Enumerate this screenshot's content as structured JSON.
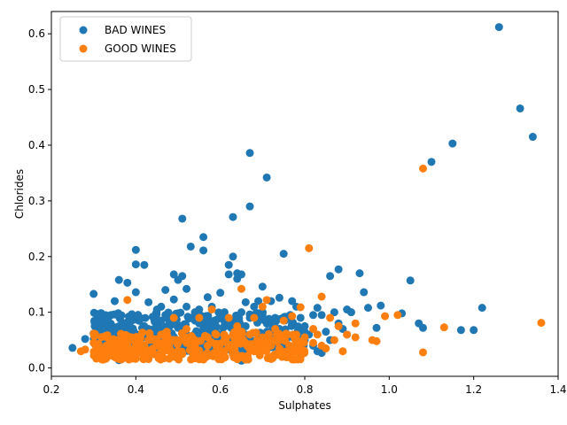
{
  "chart_data": {
    "type": "scatter",
    "xlabel": "Sulphates",
    "ylabel": "Chlorides",
    "xlim": [
      0.2,
      1.4
    ],
    "ylim": [
      -0.015,
      0.64
    ],
    "xticks": [
      "0.2",
      "0.4",
      "0.6",
      "0.8",
      "1.0",
      "1.2",
      "1.4"
    ],
    "yticks": [
      "0.0",
      "0.1",
      "0.2",
      "0.3",
      "0.4",
      "0.5",
      "0.6"
    ],
    "grid": false,
    "legend": "top-left",
    "series": [
      {
        "name": "BAD WINES",
        "color": "#1f77b4",
        "points": [
          [
            0.25,
            0.036
          ],
          [
            0.28,
            0.052
          ],
          [
            0.3,
            0.133
          ],
          [
            0.3,
            0.062
          ],
          [
            0.31,
            0.058
          ],
          [
            0.33,
            0.048
          ],
          [
            0.34,
            0.068
          ],
          [
            0.35,
            0.045
          ],
          [
            0.35,
            0.12
          ],
          [
            0.36,
            0.158
          ],
          [
            0.38,
            0.153
          ],
          [
            0.39,
            0.085
          ],
          [
            0.4,
            0.212
          ],
          [
            0.4,
            0.186
          ],
          [
            0.4,
            0.136
          ],
          [
            0.41,
            0.09
          ],
          [
            0.42,
            0.185
          ],
          [
            0.43,
            0.118
          ],
          [
            0.43,
            0.07
          ],
          [
            0.44,
            0.092
          ],
          [
            0.45,
            0.105
          ],
          [
            0.46,
            0.085
          ],
          [
            0.46,
            0.11
          ],
          [
            0.47,
            0.095
          ],
          [
            0.47,
            0.14
          ],
          [
            0.48,
            0.075
          ],
          [
            0.48,
            0.088
          ],
          [
            0.49,
            0.123
          ],
          [
            0.49,
            0.168
          ],
          [
            0.5,
            0.158
          ],
          [
            0.5,
            0.098
          ],
          [
            0.51,
            0.268
          ],
          [
            0.51,
            0.165
          ],
          [
            0.52,
            0.142
          ],
          [
            0.52,
            0.11
          ],
          [
            0.53,
            0.218
          ],
          [
            0.53,
            0.09
          ],
          [
            0.54,
            0.1
          ],
          [
            0.55,
            0.08
          ],
          [
            0.56,
            0.235
          ],
          [
            0.56,
            0.211
          ],
          [
            0.57,
            0.127
          ],
          [
            0.57,
            0.09
          ],
          [
            0.58,
            0.11
          ],
          [
            0.59,
            0.075
          ],
          [
            0.6,
            0.135
          ],
          [
            0.6,
            0.095
          ],
          [
            0.61,
            0.085
          ],
          [
            0.62,
            0.185
          ],
          [
            0.62,
            0.168
          ],
          [
            0.63,
            0.271
          ],
          [
            0.63,
            0.2
          ],
          [
            0.64,
            0.16
          ],
          [
            0.64,
            0.17
          ],
          [
            0.65,
            0.168
          ],
          [
            0.65,
            0.1
          ],
          [
            0.66,
            0.118
          ],
          [
            0.67,
            0.386
          ],
          [
            0.67,
            0.29
          ],
          [
            0.68,
            0.11
          ],
          [
            0.69,
            0.12
          ],
          [
            0.7,
            0.146
          ],
          [
            0.71,
            0.342
          ],
          [
            0.72,
            0.12
          ],
          [
            0.73,
            0.09
          ],
          [
            0.74,
            0.126
          ],
          [
            0.75,
            0.205
          ],
          [
            0.76,
            0.09
          ],
          [
            0.77,
            0.12
          ],
          [
            0.78,
            0.11
          ],
          [
            0.79,
            0.09
          ],
          [
            0.8,
            0.075
          ],
          [
            0.81,
            0.06
          ],
          [
            0.82,
            0.095
          ],
          [
            0.83,
            0.108
          ],
          [
            0.84,
            0.095
          ],
          [
            0.84,
            0.027
          ],
          [
            0.85,
            0.065
          ],
          [
            0.86,
            0.165
          ],
          [
            0.87,
            0.1
          ],
          [
            0.88,
            0.177
          ],
          [
            0.89,
            0.07
          ],
          [
            0.9,
            0.105
          ],
          [
            0.91,
            0.1
          ],
          [
            0.93,
            0.17
          ],
          [
            0.94,
            0.136
          ],
          [
            0.95,
            0.108
          ],
          [
            0.97,
            0.072
          ],
          [
            0.98,
            0.112
          ],
          [
            1.03,
            0.098
          ],
          [
            1.05,
            0.157
          ],
          [
            1.07,
            0.08
          ],
          [
            1.08,
            0.072
          ],
          [
            1.1,
            0.37
          ],
          [
            1.15,
            0.403
          ],
          [
            1.17,
            0.068
          ],
          [
            1.2,
            0.068
          ],
          [
            1.22,
            0.108
          ],
          [
            1.26,
            0.612
          ],
          [
            1.31,
            0.466
          ],
          [
            1.34,
            0.415
          ],
          [
            0.32,
            0.03
          ],
          [
            0.35,
            0.02
          ],
          [
            0.36,
            0.014
          ],
          [
            0.38,
            0.065
          ],
          [
            0.42,
            0.075
          ],
          [
            0.44,
            0.06
          ],
          [
            0.45,
            0.072
          ],
          [
            0.46,
            0.05
          ],
          [
            0.48,
            0.06
          ],
          [
            0.5,
            0.072
          ],
          [
            0.52,
            0.06
          ],
          [
            0.54,
            0.085
          ],
          [
            0.55,
            0.105
          ],
          [
            0.56,
            0.07
          ],
          [
            0.58,
            0.082
          ],
          [
            0.6,
            0.06
          ],
          [
            0.61,
            0.1
          ],
          [
            0.62,
            0.08
          ],
          [
            0.63,
            0.07
          ],
          [
            0.64,
            0.085
          ],
          [
            0.65,
            0.04
          ],
          [
            0.65,
            0.013
          ],
          [
            0.66,
            0.075
          ],
          [
            0.67,
            0.09
          ],
          [
            0.68,
            0.045
          ],
          [
            0.69,
            0.06
          ],
          [
            0.7,
            0.095
          ],
          [
            0.71,
            0.05
          ],
          [
            0.72,
            0.08
          ],
          [
            0.73,
            0.06
          ],
          [
            0.74,
            0.07
          ],
          [
            0.76,
            0.055
          ],
          [
            0.77,
            0.08
          ],
          [
            0.78,
            0.045
          ],
          [
            0.8,
            0.05
          ],
          [
            0.82,
            0.04
          ],
          [
            0.83,
            0.03
          ],
          [
            0.86,
            0.05
          ],
          [
            0.88,
            0.08
          ],
          [
            0.9,
            0.06
          ]
        ]
      },
      {
        "name": "GOOD WINES",
        "color": "#ff7f0e",
        "points": [
          [
            0.27,
            0.03
          ],
          [
            0.28,
            0.033
          ],
          [
            0.3,
            0.045
          ],
          [
            0.31,
            0.03
          ],
          [
            0.32,
            0.015
          ],
          [
            0.33,
            0.04
          ],
          [
            0.34,
            0.025
          ],
          [
            0.35,
            0.035
          ],
          [
            0.36,
            0.05
          ],
          [
            0.37,
            0.02
          ],
          [
            0.38,
            0.122
          ],
          [
            0.38,
            0.04
          ],
          [
            0.39,
            0.03
          ],
          [
            0.4,
            0.055
          ],
          [
            0.4,
            0.018
          ],
          [
            0.41,
            0.045
          ],
          [
            0.42,
            0.03
          ],
          [
            0.43,
            0.05
          ],
          [
            0.44,
            0.025
          ],
          [
            0.45,
            0.04
          ],
          [
            0.46,
            0.06
          ],
          [
            0.47,
            0.035
          ],
          [
            0.48,
            0.03
          ],
          [
            0.49,
            0.09
          ],
          [
            0.5,
            0.045
          ],
          [
            0.51,
            0.025
          ],
          [
            0.52,
            0.07
          ],
          [
            0.53,
            0.035
          ],
          [
            0.54,
            0.05
          ],
          [
            0.55,
            0.09
          ],
          [
            0.56,
            0.015
          ],
          [
            0.57,
            0.04
          ],
          [
            0.58,
            0.105
          ],
          [
            0.59,
            0.06
          ],
          [
            0.6,
            0.03
          ],
          [
            0.61,
            0.05
          ],
          [
            0.62,
            0.09
          ],
          [
            0.63,
            0.04
          ],
          [
            0.64,
            0.075
          ],
          [
            0.65,
            0.142
          ],
          [
            0.66,
            0.015
          ],
          [
            0.67,
            0.06
          ],
          [
            0.68,
            0.09
          ],
          [
            0.69,
            0.04
          ],
          [
            0.7,
            0.11
          ],
          [
            0.71,
            0.122
          ],
          [
            0.72,
            0.05
          ],
          [
            0.73,
            0.07
          ],
          [
            0.74,
            0.035
          ],
          [
            0.75,
            0.085
          ],
          [
            0.76,
            0.06
          ],
          [
            0.77,
            0.093
          ],
          [
            0.78,
            0.03
          ],
          [
            0.79,
            0.109
          ],
          [
            0.8,
            0.055
          ],
          [
            0.81,
            0.215
          ],
          [
            0.82,
            0.045
          ],
          [
            0.83,
            0.06
          ],
          [
            0.84,
            0.128
          ],
          [
            0.85,
            0.035
          ],
          [
            0.86,
            0.09
          ],
          [
            0.87,
            0.05
          ],
          [
            0.88,
            0.075
          ],
          [
            0.89,
            0.03
          ],
          [
            0.9,
            0.06
          ],
          [
            0.92,
            0.08
          ],
          [
            0.92,
            0.055
          ],
          [
            0.96,
            0.05
          ],
          [
            0.97,
            0.048
          ],
          [
            0.99,
            0.093
          ],
          [
            1.02,
            0.095
          ],
          [
            1.08,
            0.358
          ],
          [
            1.08,
            0.028
          ],
          [
            1.13,
            0.073
          ],
          [
            1.36,
            0.081
          ],
          [
            0.34,
            0.045
          ],
          [
            0.36,
            0.03
          ],
          [
            0.39,
            0.055
          ],
          [
            0.42,
            0.04
          ],
          [
            0.44,
            0.05
          ],
          [
            0.46,
            0.03
          ],
          [
            0.47,
            0.055
          ],
          [
            0.5,
            0.03
          ],
          [
            0.52,
            0.045
          ],
          [
            0.54,
            0.03
          ],
          [
            0.57,
            0.055
          ],
          [
            0.59,
            0.04
          ],
          [
            0.61,
            0.03
          ],
          [
            0.63,
            0.06
          ],
          [
            0.66,
            0.045
          ],
          [
            0.68,
            0.03
          ],
          [
            0.7,
            0.055
          ],
          [
            0.72,
            0.04
          ],
          [
            0.75,
            0.05
          ],
          [
            0.78,
            0.06
          ],
          [
            0.82,
            0.07
          ],
          [
            0.84,
            0.04
          ]
        ]
      }
    ],
    "dense_clusters": [
      {
        "series": "BAD WINES",
        "x_range": [
          0.3,
          0.8
        ],
        "y_range": [
          0.03,
          0.1
        ],
        "count": 380,
        "seed": 7
      },
      {
        "series": "GOOD WINES",
        "x_range": [
          0.3,
          0.8
        ],
        "y_range": [
          0.015,
          0.065
        ],
        "count": 280,
        "seed": 13
      }
    ]
  }
}
